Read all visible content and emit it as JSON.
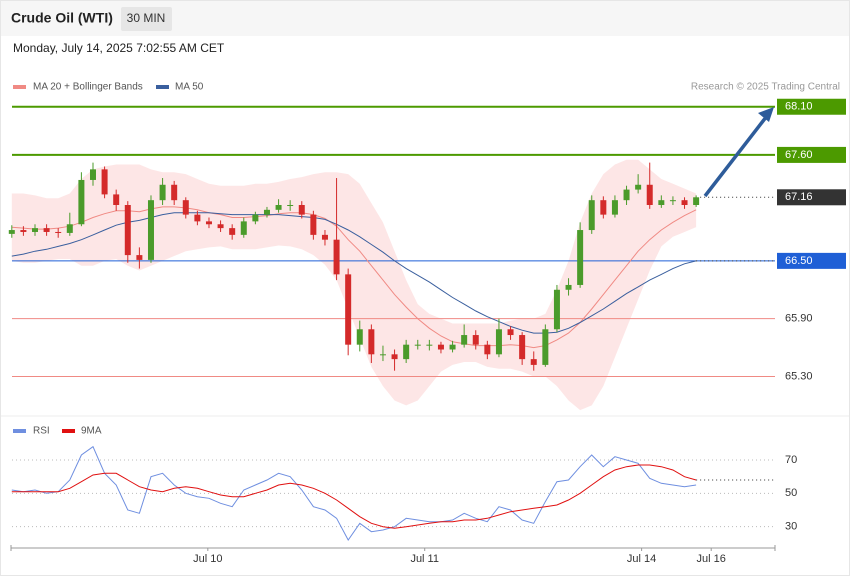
{
  "chart_data": {
    "type": "candlestick",
    "title": "Crude Oil (WTI)",
    "interval": "30 MIN",
    "timestamp": "Monday, July 14, 2025 7:02:55 AM CET",
    "credit": "Research © 2025 Trading Central",
    "up_color": "#4b9b2b",
    "down_color": "#d42a2a",
    "ylim": [
      64.9,
      68.17
    ],
    "xlim": [
      -0.5,
      65.8
    ],
    "xticks": [
      {
        "value": 16.9,
        "label": "Jul 10"
      },
      {
        "value": 35.6,
        "label": "Jul 11"
      },
      {
        "value": 54.3,
        "label": "Jul 14"
      },
      {
        "value": 60.3,
        "label": "Jul 16"
      }
    ],
    "candles": [
      [
        66.78,
        66.87,
        66.74,
        66.82
      ],
      [
        66.82,
        66.86,
        66.76,
        66.8
      ],
      [
        66.8,
        66.88,
        66.76,
        66.84
      ],
      [
        66.84,
        66.88,
        66.76,
        66.8
      ],
      [
        66.8,
        66.84,
        66.74,
        66.79
      ],
      [
        66.79,
        67.0,
        66.76,
        66.88
      ],
      [
        66.88,
        67.42,
        66.86,
        67.34
      ],
      [
        67.34,
        67.52,
        67.28,
        67.45
      ],
      [
        67.45,
        67.48,
        67.15,
        67.19
      ],
      [
        67.19,
        67.24,
        67.02,
        67.08
      ],
      [
        67.08,
        67.12,
        66.48,
        66.56
      ],
      [
        66.56,
        66.64,
        66.42,
        66.51
      ],
      [
        66.51,
        67.18,
        66.48,
        67.13
      ],
      [
        67.13,
        67.36,
        67.08,
        67.29
      ],
      [
        67.29,
        67.33,
        67.08,
        67.13
      ],
      [
        67.13,
        67.16,
        66.94,
        66.98
      ],
      [
        66.98,
        67.02,
        66.87,
        66.91
      ],
      [
        66.91,
        66.95,
        66.84,
        66.88
      ],
      [
        66.88,
        66.92,
        66.8,
        66.84
      ],
      [
        66.84,
        66.88,
        66.72,
        66.77
      ],
      [
        66.77,
        66.95,
        66.74,
        66.91
      ],
      [
        66.91,
        67.01,
        66.88,
        66.98
      ],
      [
        66.98,
        67.06,
        66.95,
        67.03
      ],
      [
        67.03,
        67.14,
        67.0,
        67.08
      ],
      [
        67.08,
        67.13,
        67.02,
        67.08
      ],
      [
        67.08,
        67.12,
        66.94,
        66.98
      ],
      [
        66.98,
        67.02,
        66.72,
        66.77
      ],
      [
        66.77,
        66.82,
        66.66,
        66.72
      ],
      [
        66.72,
        67.36,
        66.3,
        66.36
      ],
      [
        66.36,
        66.42,
        65.52,
        65.63
      ],
      [
        65.63,
        65.88,
        65.56,
        65.79
      ],
      [
        65.79,
        65.84,
        65.44,
        65.53
      ],
      [
        65.53,
        65.62,
        65.46,
        65.53
      ],
      [
        65.53,
        65.58,
        65.36,
        65.48
      ],
      [
        65.48,
        65.68,
        65.44,
        65.63
      ],
      [
        65.63,
        65.68,
        65.58,
        65.63
      ],
      [
        65.63,
        65.68,
        65.57,
        65.63
      ],
      [
        65.63,
        65.66,
        65.54,
        65.58
      ],
      [
        65.58,
        65.67,
        65.55,
        65.63
      ],
      [
        65.63,
        65.84,
        65.6,
        65.73
      ],
      [
        65.73,
        65.78,
        65.58,
        65.63
      ],
      [
        65.63,
        65.67,
        65.48,
        65.53
      ],
      [
        65.53,
        65.9,
        65.5,
        65.79
      ],
      [
        65.79,
        65.82,
        65.68,
        65.73
      ],
      [
        65.73,
        65.76,
        65.42,
        65.48
      ],
      [
        65.48,
        65.56,
        65.36,
        65.42
      ],
      [
        65.42,
        65.84,
        65.4,
        65.79
      ],
      [
        65.79,
        66.25,
        65.76,
        66.2
      ],
      [
        66.2,
        66.32,
        66.14,
        66.25
      ],
      [
        66.25,
        66.9,
        66.22,
        66.82
      ],
      [
        66.82,
        67.18,
        66.78,
        67.13
      ],
      [
        67.13,
        67.17,
        66.94,
        66.98
      ],
      [
        66.98,
        67.18,
        66.95,
        67.13
      ],
      [
        67.13,
        67.28,
        67.08,
        67.24
      ],
      [
        67.24,
        67.4,
        67.2,
        67.29
      ],
      [
        67.29,
        67.52,
        67.04,
        67.08
      ],
      [
        67.08,
        67.18,
        67.05,
        67.13
      ],
      [
        67.13,
        67.17,
        67.08,
        67.13
      ],
      [
        67.13,
        67.16,
        67.04,
        67.08
      ],
      [
        67.08,
        67.18,
        67.06,
        67.16
      ]
    ],
    "series": [
      {
        "name": "MA 20 + Bollinger Bands",
        "color": "#f08a84",
        "band_color": "#fde0e0",
        "values": [
          66.85,
          66.84,
          66.83,
          66.83,
          66.84,
          66.86,
          66.9,
          66.95,
          66.99,
          67.02,
          67.02,
          67.01,
          67.04,
          67.06,
          67.06,
          67.05,
          67.03,
          67.0,
          66.98,
          66.95,
          66.95,
          66.96,
          66.97,
          66.99,
          67.0,
          67.0,
          66.98,
          66.94,
          66.86,
          66.72,
          66.6,
          66.45,
          66.3,
          66.15,
          66.02,
          65.9,
          65.8,
          65.72,
          65.66,
          65.64,
          65.62,
          65.62,
          65.62,
          65.63,
          65.62,
          65.6,
          65.62,
          65.68,
          65.75,
          65.86,
          66.0,
          66.15,
          66.3,
          66.45,
          66.6,
          66.72,
          66.82,
          66.9,
          66.97,
          67.03
        ],
        "upper": [
          67.2,
          67.2,
          67.18,
          67.15,
          67.15,
          67.2,
          67.35,
          67.45,
          67.48,
          67.5,
          67.5,
          67.5,
          67.45,
          67.42,
          67.42,
          67.4,
          67.35,
          67.3,
          67.28,
          67.28,
          67.28,
          67.3,
          67.3,
          67.32,
          67.35,
          67.37,
          67.4,
          67.42,
          67.42,
          67.4,
          67.3,
          67.1,
          66.9,
          66.6,
          66.3,
          66.05,
          65.95,
          65.9,
          65.85,
          65.85,
          65.85,
          65.85,
          65.85,
          65.88,
          65.9,
          65.9,
          65.95,
          66.2,
          66.5,
          66.9,
          67.2,
          67.4,
          67.5,
          67.55,
          67.55,
          67.45,
          67.35,
          67.3,
          67.25,
          67.2
        ],
        "lower": [
          66.5,
          66.48,
          66.48,
          66.5,
          66.52,
          66.52,
          66.45,
          66.45,
          66.5,
          66.52,
          66.45,
          66.4,
          66.45,
          66.5,
          66.55,
          66.6,
          66.62,
          66.64,
          66.65,
          66.62,
          66.62,
          66.62,
          66.64,
          66.66,
          66.65,
          66.62,
          66.56,
          66.46,
          66.3,
          66.0,
          65.7,
          65.4,
          65.2,
          65.05,
          65.0,
          65.05,
          65.2,
          65.35,
          65.42,
          65.45,
          65.45,
          65.4,
          65.38,
          65.38,
          65.35,
          65.3,
          65.3,
          65.2,
          65.05,
          64.95,
          65.0,
          65.2,
          65.5,
          65.8,
          66.1,
          66.4,
          66.65,
          66.75,
          66.8,
          66.85
        ]
      },
      {
        "name": "MA 50",
        "color": "#3a5f9e",
        "values": [
          66.55,
          66.57,
          66.6,
          66.62,
          66.65,
          66.68,
          66.72,
          66.77,
          66.82,
          66.87,
          66.9,
          66.92,
          66.95,
          66.98,
          67.0,
          67.0,
          67.0,
          67.0,
          66.99,
          66.98,
          66.98,
          66.98,
          66.98,
          66.98,
          66.97,
          66.96,
          66.95,
          66.93,
          66.88,
          66.82,
          66.75,
          66.67,
          66.59,
          66.5,
          66.42,
          66.35,
          66.28,
          66.2,
          66.12,
          66.05,
          65.98,
          65.92,
          65.87,
          65.82,
          65.78,
          65.75,
          65.75,
          65.76,
          65.8,
          65.86,
          65.93,
          66.0,
          66.08,
          66.16,
          66.23,
          66.3,
          66.36,
          66.42,
          66.47,
          66.5
        ]
      }
    ],
    "levels": [
      {
        "value": 68.1,
        "label": "68.10",
        "color": "#4c9a00",
        "style": "solid",
        "box": true
      },
      {
        "value": 67.6,
        "label": "67.60",
        "color": "#4c9a00",
        "style": "solid",
        "box": true
      },
      {
        "value": 67.16,
        "label": "67.16",
        "color": "#333333",
        "style": "dotted",
        "box": true
      },
      {
        "value": 66.5,
        "label": "66.50",
        "color": "#1f5fd6",
        "style": "solid",
        "box": true
      },
      {
        "value": 65.9,
        "label": "65.90",
        "color": "#f08a84",
        "style": "solid",
        "box": false
      },
      {
        "value": 65.3,
        "label": "65.30",
        "color": "#f08a84",
        "style": "solid",
        "box": false
      }
    ],
    "rsi": {
      "ylim": [
        19,
        82
      ],
      "yticks": [
        30,
        50,
        70
      ],
      "series": [
        {
          "name": "RSI",
          "color": "#6f8fe0",
          "values": [
            52,
            51,
            52,
            50,
            51,
            58,
            73,
            78,
            62,
            55,
            40,
            38,
            60,
            62,
            55,
            50,
            48,
            47,
            44,
            42,
            52,
            55,
            58,
            62,
            60,
            52,
            42,
            40,
            35,
            22,
            32,
            27,
            28,
            30,
            35,
            34,
            33,
            33,
            34,
            38,
            35,
            33,
            42,
            40,
            34,
            32,
            45,
            57,
            58,
            66,
            73,
            66,
            72,
            70,
            68,
            59,
            56,
            55,
            54,
            55
          ]
        },
        {
          "name": "9MA",
          "color": "#e01010",
          "values": [
            51,
            51,
            51,
            51,
            51,
            53,
            57,
            61,
            62,
            62,
            58,
            54,
            52,
            51,
            53,
            54,
            53,
            51,
            49,
            48,
            48,
            50,
            52,
            55,
            56,
            55,
            53,
            50,
            46,
            41,
            36,
            32,
            30,
            29,
            30,
            31,
            32,
            33,
            33,
            34,
            34,
            35,
            37,
            39,
            40,
            41,
            42,
            43,
            46,
            50,
            55,
            60,
            64,
            66,
            67,
            67,
            66,
            64,
            60,
            58
          ]
        }
      ]
    }
  }
}
